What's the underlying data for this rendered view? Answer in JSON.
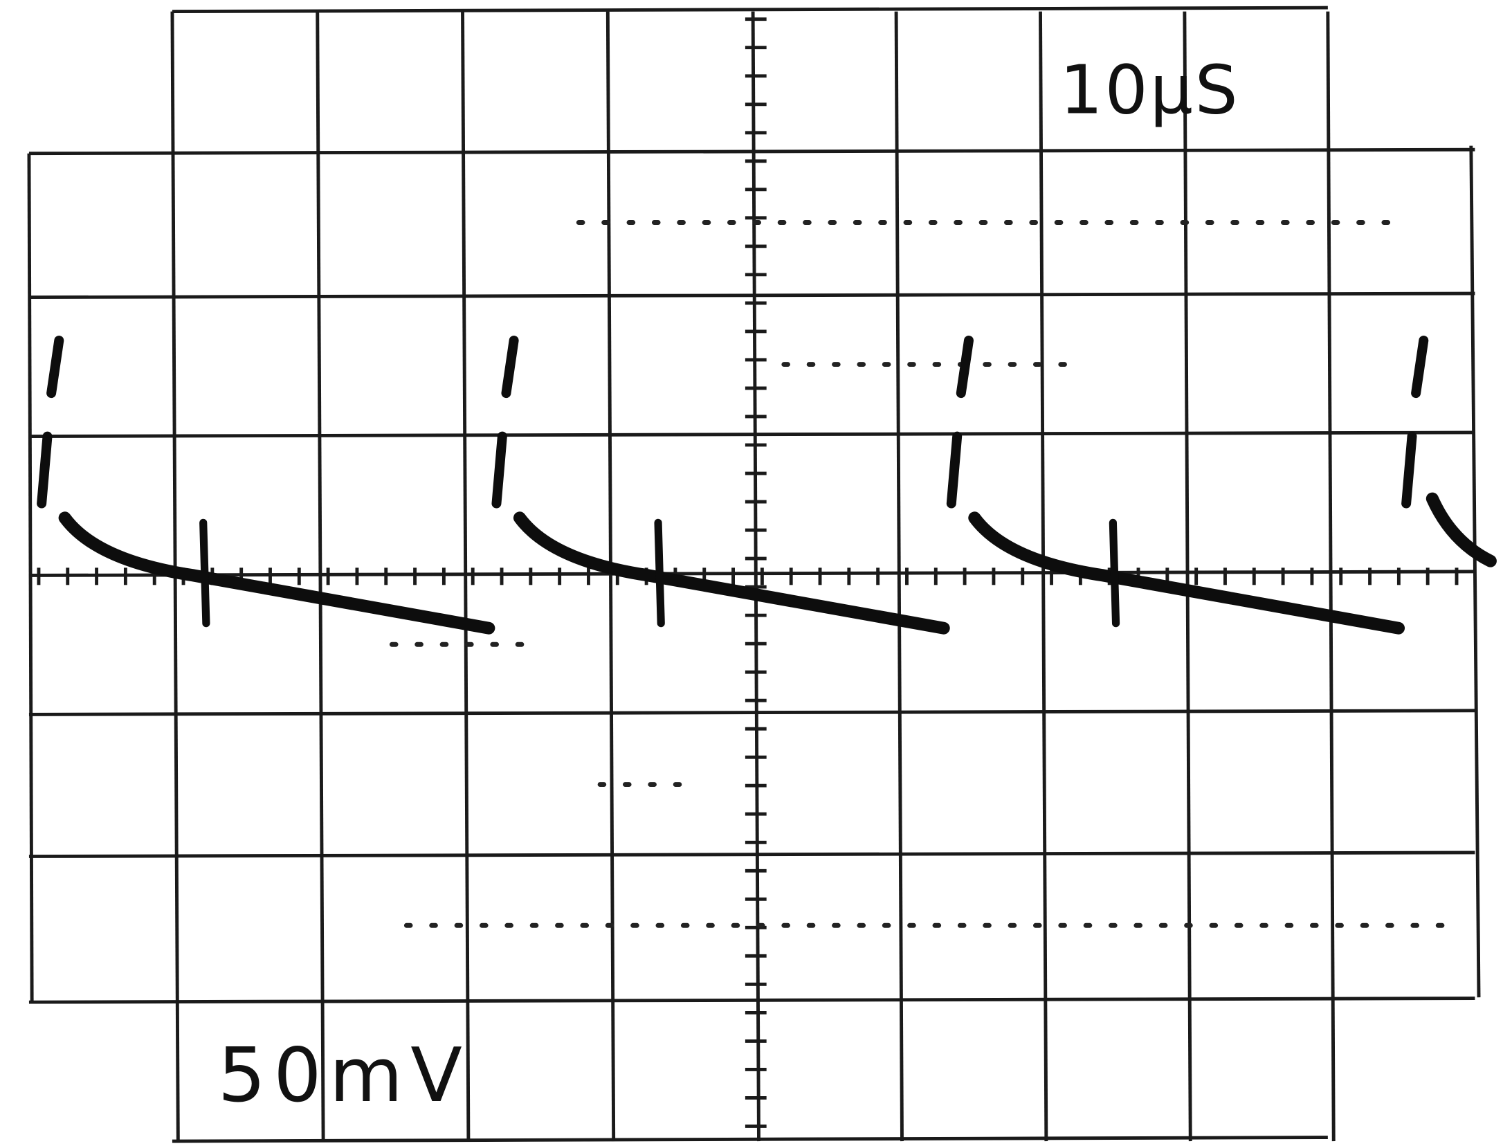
{
  "labels": {
    "timebase": "10µS",
    "volts_per_div": "50mV"
  }
}
